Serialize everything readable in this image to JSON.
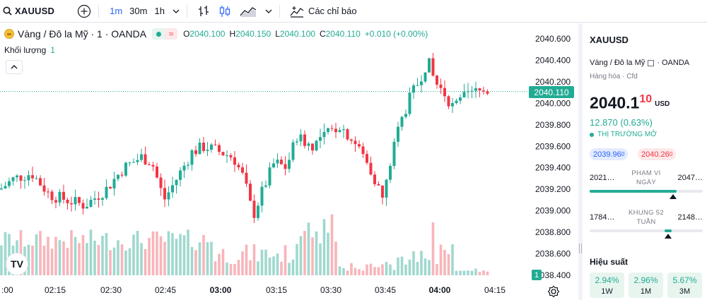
{
  "toolbar": {
    "symbol": "XAUUSD",
    "intervals": [
      "1m",
      "30m",
      "1h"
    ],
    "active_interval": "1m",
    "indicators_label": "Các chỉ báo"
  },
  "legend": {
    "title": "Vàng / Đô la Mỹ · 1 · OANDA",
    "market_wave": "≈",
    "open_key": "O",
    "open": "2040.100",
    "high_key": "H",
    "high": "2040.150",
    "low_key": "L",
    "low": "2040.100",
    "close_key": "C",
    "close": "2040.110",
    "change": "+0.010 (+0.00%)",
    "volume_label": "Khối lượng",
    "volume_value": "1"
  },
  "chart": {
    "price_axis": [
      "2040.600",
      "2040.400",
      "2040.200",
      "2040.000",
      "2039.800",
      "2039.600",
      "2039.400",
      "2039.200",
      "2039.000",
      "2038.800",
      "2038.600",
      "2038.400"
    ],
    "price_axis_values": [
      2040.6,
      2040.4,
      2040.2,
      2040.0,
      2039.8,
      2039.6,
      2039.4,
      2039.2,
      2039.0,
      2038.8,
      2038.6,
      2038.4
    ],
    "time_axis": [
      ":00",
      "02:15",
      "02:30",
      "02:45",
      "03:00",
      "03:15",
      "03:30",
      "03:45",
      "04:00",
      "04:15"
    ],
    "time_axis_bold": [
      false,
      false,
      false,
      false,
      true,
      false,
      false,
      false,
      true,
      false
    ],
    "current_price": 2040.11,
    "current_price_label": "2040.110",
    "volume_tag": "1",
    "logo_text": "TV",
    "colors": {
      "up": "#22ab94",
      "down": "#f23645",
      "up_vol": "#9fd8ce",
      "down_vol": "#f7b5ba"
    }
  },
  "panel": {
    "symbol": "XAUUSD",
    "name": "Vàng / Đô la Mỹ",
    "exchange": "OANDA",
    "type": "Hàng hóa · Cfd",
    "price_main": "2040.1",
    "price_last": "10",
    "currency": "USD",
    "change": "12.870 (0.63%)",
    "status": "THỊ TRƯỜNG MỞ",
    "bid": "2039.96",
    "bid_sup": "0",
    "ask": "2040.26",
    "ask_sup": "0",
    "day_range": {
      "low": "2021…",
      "label_1": "PHẠM VI",
      "label_2": "NGÀY",
      "high": "2047…",
      "position": 0.73
    },
    "year_range": {
      "low": "1784…",
      "label_1": "KHUNG 52",
      "label_2": "TUẦN",
      "high": "2148…",
      "position": 0.69
    },
    "performance_title": "Hiệu suất",
    "performance": [
      {
        "value": "2.94%",
        "label": "1W"
      },
      {
        "value": "2.96%",
        "label": "1M"
      },
      {
        "value": "5.67%",
        "label": "3M"
      }
    ]
  }
}
